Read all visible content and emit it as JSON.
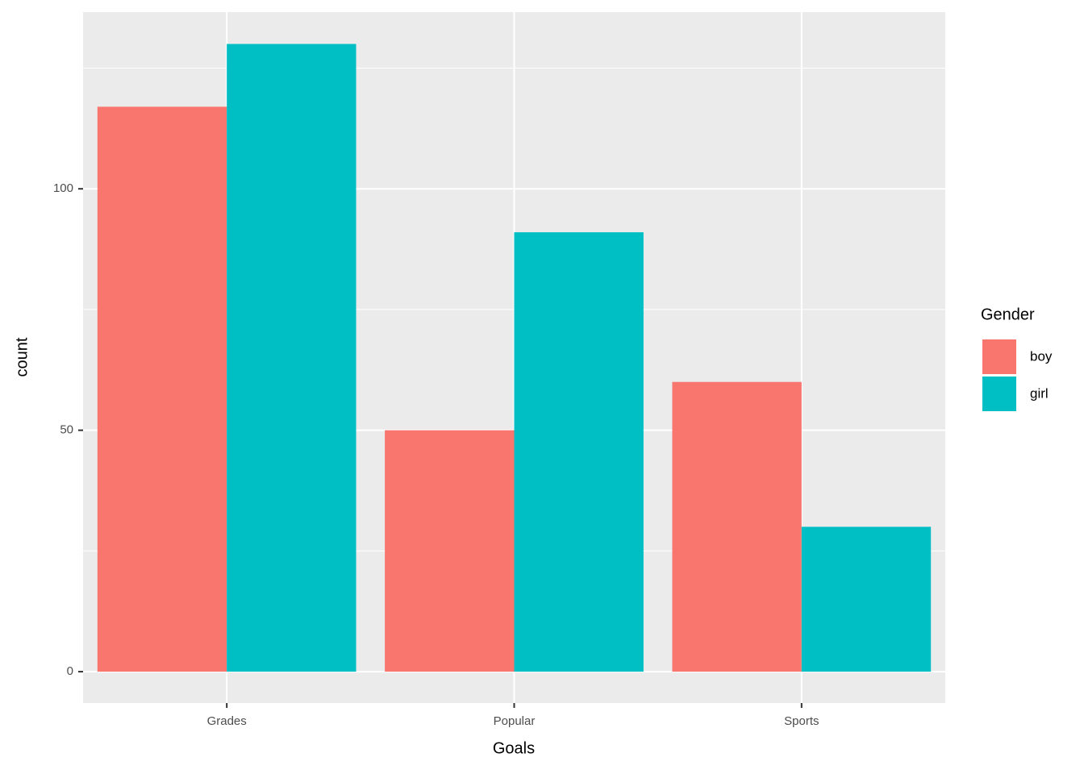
{
  "chart_data": {
    "type": "bar",
    "x_label": "Goals",
    "y_label": "count",
    "categories": [
      "Grades",
      "Popular",
      "Sports"
    ],
    "series": [
      {
        "name": "boy",
        "color": "#f8766d",
        "values": [
          117,
          50,
          60
        ]
      },
      {
        "name": "girl",
        "color": "#00bfc4",
        "values": [
          130,
          91,
          30
        ]
      }
    ],
    "ylim": [
      -6.5,
      136.6
    ],
    "yticks": [
      0,
      50,
      100
    ],
    "minor_yticks": [
      25,
      75,
      125
    ],
    "grid": true,
    "legend_title": "Gender",
    "legend_position": "right"
  }
}
